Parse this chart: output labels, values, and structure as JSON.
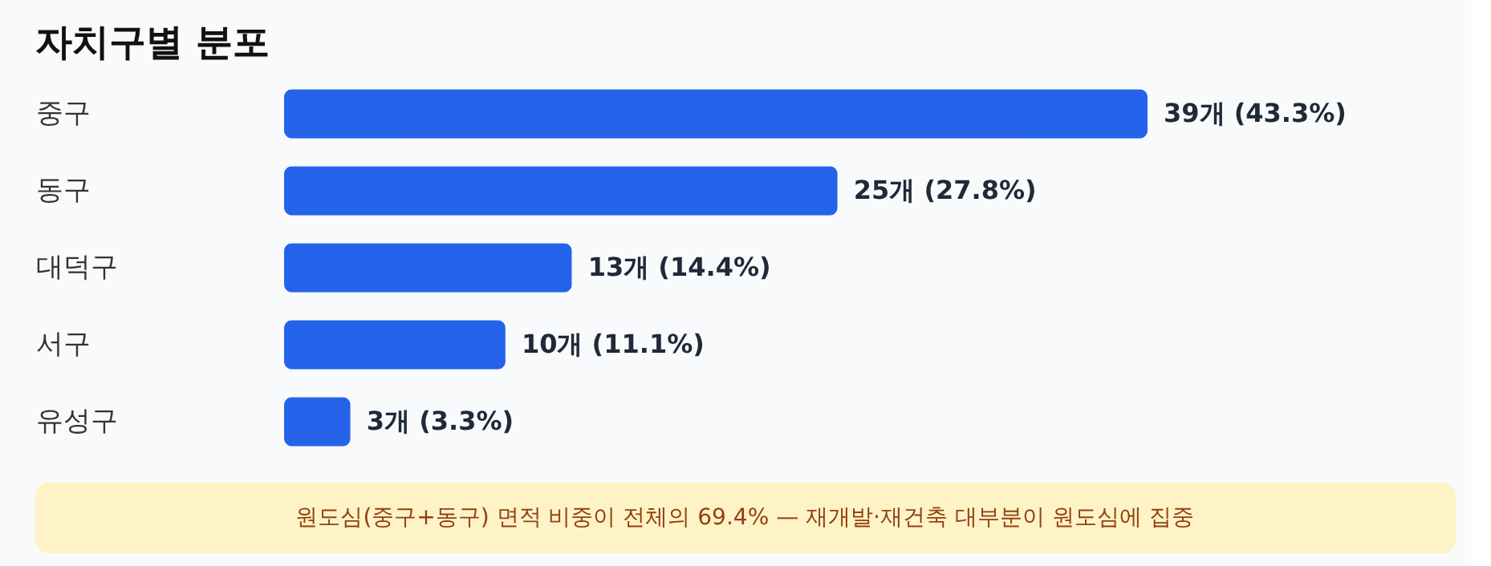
{
  "chart_data": {
    "type": "bar",
    "orientation": "horizontal",
    "title": "자치구별 분포",
    "categories": [
      "중구",
      "동구",
      "대덕구",
      "서구",
      "유성구"
    ],
    "values": [
      39,
      25,
      13,
      10,
      3
    ],
    "value_labels": [
      "39개 (43.3%)",
      "25개 (27.8%)",
      "13개 (14.4%)",
      "10개 (11.1%)",
      "3개 (3.3%)"
    ],
    "color": "#2563eb",
    "xlim": [
      0,
      39
    ],
    "tick_labels": "y",
    "annotations": [
      "원도심(중구+동구) 면적 비중이 전체의 69.4% — 재개발·재건축 대부분이 원도심에 집중"
    ]
  }
}
